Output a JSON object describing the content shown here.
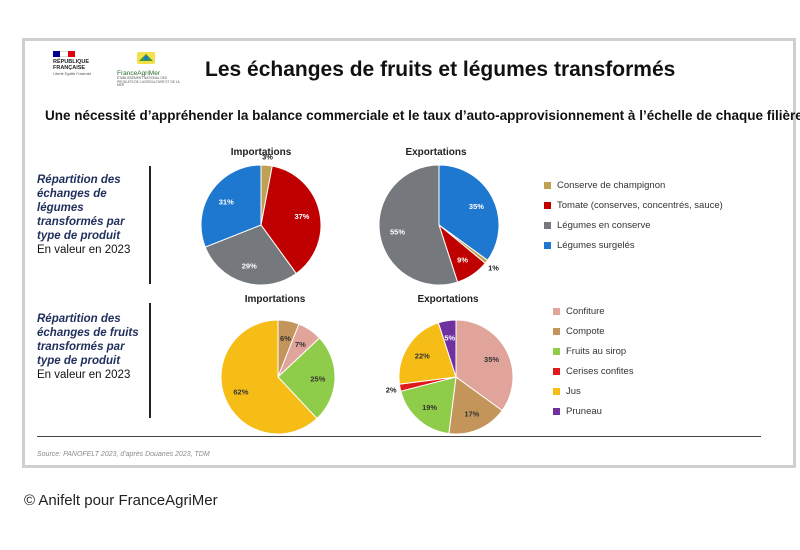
{
  "header": {
    "title": "Les échanges de fruits et légumes transformés",
    "subtitle": "Une nécessité d’appréhender la balance commerciale et le taux d’auto-approvisionnement à l’échelle de chaque filière",
    "logo_rf": {
      "line1": "RÉPUBLIQUE",
      "line2": "FRANÇAISE",
      "motto": "Liberté Égalité Fraternité",
      "colors": [
        "#000091",
        "#ffffff",
        "#e1000f"
      ]
    },
    "logo_fam": {
      "name": "FranceAgriMer",
      "sub": "ÉTABLISSEMENT NATIONAL DES PRODUITS DE L'AGRICULTURE ET DE LA MER"
    }
  },
  "sections": {
    "vegetables": {
      "label_bold": "Répartition des échanges de légumes transformés par type de produit",
      "label_note": "En valeur en 2023"
    },
    "fruits": {
      "label_bold": "Répartition des échanges de fruits transformés par type de produit",
      "label_note": "En valeur en 2023"
    }
  },
  "legends": {
    "vegetables": [
      {
        "name": "Conserve de champignon",
        "color": "#c0a052"
      },
      {
        "name": "Tomate (conserves, concentrés, sauce)",
        "color": "#c00000"
      },
      {
        "name": "Légumes en conserve",
        "color": "#75787c"
      },
      {
        "name": "Légumes surgelés",
        "color": "#1f78d0"
      }
    ],
    "fruits": [
      {
        "name": "Confiture",
        "color": "#e0a49a"
      },
      {
        "name": "Compote",
        "color": "#c4955a"
      },
      {
        "name": "Fruits au sirop",
        "color": "#8fcc4a"
      },
      {
        "name": "Cerises confites",
        "color": "#e01a1a"
      },
      {
        "name": "Jus",
        "color": "#f6bd16"
      },
      {
        "name": "Pruneau",
        "color": "#7030a0"
      }
    ]
  },
  "chart_data": [
    {
      "type": "pie",
      "title": "Importations",
      "labels": [
        "Conserve de champignon",
        "Tomate (conserves, concentrés, sauce)",
        "Légumes en conserve",
        "Légumes surgelés"
      ],
      "values": [
        3,
        37,
        29,
        31
      ],
      "data_labels": [
        "3%",
        "37%",
        "29%",
        "31%"
      ],
      "colors": [
        "#c0a052",
        "#c00000",
        "#75787c",
        "#1f78d0"
      ]
    },
    {
      "type": "pie",
      "title": "Exportations",
      "labels": [
        "Légumes surgelés",
        "Conserve de champignon",
        "Tomate (conserves, concentrés, sauce)",
        "Légumes en conserve"
      ],
      "values": [
        35,
        1,
        9,
        55
      ],
      "data_labels": [
        "35%",
        "1%",
        "9%",
        "55%"
      ],
      "colors": [
        "#1f78d0",
        "#c0a052",
        "#c00000",
        "#75787c"
      ]
    },
    {
      "type": "pie",
      "title": "Importations",
      "labels": [
        "Confiture",
        "Compote",
        "Fruits au sirop",
        "Jus"
      ],
      "values": [
        6,
        7,
        25,
        62
      ],
      "data_labels": [
        "6%",
        "7%",
        "25%",
        "62%"
      ],
      "colors": [
        "#c4955a",
        "#e0a49a",
        "#8fcc4a",
        "#f6bd16"
      ]
    },
    {
      "type": "pie",
      "title": "Exportations",
      "labels": [
        "Confiture",
        "Compote",
        "Fruits au sirop",
        "Cerises confites",
        "Jus",
        "Pruneau"
      ],
      "values": [
        35,
        17,
        19,
        2,
        22,
        5
      ],
      "data_labels": [
        "35%",
        "17%",
        "19%",
        "2%",
        "22%",
        "5%"
      ],
      "colors": [
        "#e0a49a",
        "#c4955a",
        "#8fcc4a",
        "#e01a1a",
        "#f6bd16",
        "#7030a0"
      ]
    }
  ],
  "source": "Source: PANOFELT 2023, d'après Douanes 2023, TDM",
  "credit": "© Anifelt pour FranceAgriMer"
}
